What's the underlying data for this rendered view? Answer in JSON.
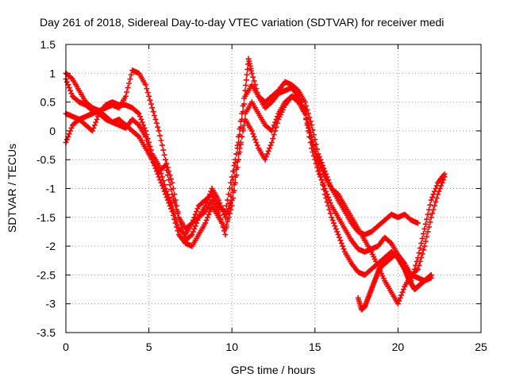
{
  "chart_data": {
    "type": "scatter",
    "title": "Day 261 of 2018, Sidereal Day-to-day VTEC variation (SDTVAR) for receiver medi",
    "xlabel": "GPS time / hours",
    "ylabel": "SDTVAR / TECUs",
    "xlim": [
      0,
      25
    ],
    "ylim": [
      -3.5,
      1.5
    ],
    "x_ticks": [
      0,
      5,
      10,
      15,
      20,
      25
    ],
    "x_tick_labels": [
      "0",
      "5",
      "10",
      "15",
      "20",
      "25"
    ],
    "y_ticks": [
      -3.5,
      -3,
      -2.5,
      -2,
      -1.5,
      -1,
      -0.5,
      0,
      0.5,
      1,
      1.5
    ],
    "y_tick_labels": [
      "-3.5",
      "-3",
      "-2.5",
      "-2",
      "-1.5",
      "-1",
      "-0.5",
      "0",
      "0.5",
      "1",
      "1.5"
    ],
    "grid": true,
    "marker": "+",
    "color": "#ff0000",
    "series": [
      {
        "name": "track-1",
        "x": [
          0.0,
          0.4,
          0.8,
          1.2,
          1.6,
          2.0,
          2.4,
          2.8,
          3.2,
          3.6,
          4.0,
          4.4,
          4.8,
          5.2,
          5.6,
          6.0,
          6.4,
          6.8,
          7.2,
          7.6,
          8.0,
          8.4,
          8.8,
          9.2,
          9.6,
          10.0,
          10.4,
          10.8,
          11.2,
          11.6,
          12.0,
          12.4,
          12.8,
          13.2,
          13.6,
          14.0,
          14.4,
          14.8,
          15.2,
          15.6,
          16.0,
          16.4,
          16.8,
          17.2,
          17.6,
          18.0,
          18.4,
          18.8,
          19.2,
          19.6,
          20.0,
          20.4,
          20.8,
          21.2
        ],
        "y": [
          1.0,
          0.9,
          0.7,
          0.5,
          0.4,
          0.35,
          0.4,
          0.45,
          0.4,
          0.6,
          1.05,
          1.0,
          0.8,
          0.4,
          0.0,
          -0.5,
          -0.9,
          -1.5,
          -1.7,
          -1.6,
          -1.3,
          -1.2,
          -1.1,
          -1.3,
          -1.4,
          -0.8,
          -0.2,
          0.6,
          0.8,
          0.6,
          0.5,
          0.6,
          0.7,
          0.85,
          0.8,
          0.7,
          0.5,
          0.1,
          -0.4,
          -0.7,
          -1.0,
          -1.2,
          -1.4,
          -1.6,
          -1.75,
          -1.8,
          -1.75,
          -1.65,
          -1.55,
          -1.45,
          -1.5,
          -1.45,
          -1.55,
          -1.6
        ]
      },
      {
        "name": "track-2",
        "x": [
          0.0,
          0.4,
          0.8,
          1.2,
          1.6,
          2.0,
          2.4,
          2.8,
          3.2,
          3.6,
          4.0,
          4.4,
          4.8,
          5.2,
          5.6,
          6.0,
          6.4,
          6.8,
          7.2,
          7.6,
          8.0,
          8.4,
          8.8,
          9.2,
          9.6,
          10.0,
          10.4,
          10.8,
          11.2,
          11.6,
          12.0,
          12.4,
          12.8,
          13.2,
          13.6,
          14.0,
          14.4,
          14.8,
          15.2,
          15.6,
          16.0,
          16.4,
          16.8,
          17.2,
          17.6,
          18.0,
          18.4,
          18.8,
          19.2,
          19.6,
          20.0,
          20.4,
          20.8,
          21.2,
          21.6,
          22.0
        ],
        "y": [
          0.3,
          0.25,
          0.2,
          0.25,
          0.3,
          0.35,
          0.25,
          0.15,
          0.1,
          0.05,
          0.2,
          0.1,
          -0.1,
          -0.5,
          -0.8,
          -1.1,
          -1.4,
          -1.8,
          -1.95,
          -2.0,
          -1.8,
          -1.6,
          -1.3,
          -1.5,
          -1.7,
          -1.3,
          -0.5,
          0.3,
          0.5,
          0.3,
          0.1,
          0.0,
          0.3,
          0.5,
          0.6,
          0.5,
          0.3,
          -0.3,
          -0.7,
          -1.0,
          -1.3,
          -1.5,
          -1.7,
          -1.9,
          -2.05,
          -2.1,
          -2.05,
          -2.0,
          -1.85,
          -1.95,
          -2.15,
          -2.3,
          -2.5,
          -2.55,
          -2.6,
          -2.55
        ]
      },
      {
        "name": "track-3",
        "x": [
          0.0,
          0.4,
          0.8,
          1.2,
          1.6,
          2.0,
          2.4,
          2.8,
          3.2,
          3.6,
          4.0,
          4.4,
          4.8,
          5.2,
          5.6,
          6.0,
          6.4,
          6.8,
          7.2,
          7.6,
          8.0,
          8.4,
          8.8,
          9.2,
          9.6,
          10.0,
          10.4,
          10.8,
          11.2,
          11.6,
          12.0,
          12.4,
          12.8,
          13.2,
          13.6,
          14.0,
          14.4,
          14.8,
          15.2,
          15.6,
          16.0,
          16.4,
          16.8,
          17.2,
          17.6,
          18.0,
          18.4,
          18.8,
          19.2,
          19.6,
          20.0,
          20.4,
          20.8,
          21.2,
          21.6,
          22.0,
          22.4,
          22.8
        ],
        "y": [
          -0.2,
          0.1,
          0.2,
          0.1,
          0.0,
          0.3,
          0.45,
          0.5,
          0.45,
          0.45,
          0.4,
          0.3,
          0.0,
          -0.4,
          -0.6,
          -1.0,
          -1.3,
          -1.7,
          -1.8,
          -1.6,
          -1.5,
          -1.3,
          -1.0,
          -1.2,
          -1.5,
          -1.2,
          -0.4,
          0.2,
          0.0,
          -0.3,
          -0.5,
          -0.2,
          0.2,
          0.45,
          0.6,
          0.55,
          0.35,
          -0.1,
          -0.6,
          -1.1,
          -1.5,
          -1.8,
          -2.1,
          -2.3,
          -2.45,
          -2.5,
          -2.4,
          -2.3,
          -2.2,
          -2.1,
          -2.2,
          -2.4,
          -2.6,
          -2.2,
          -1.7,
          -1.2,
          -0.9,
          -0.75
        ]
      },
      {
        "name": "track-4",
        "x": [
          0.0,
          0.4,
          0.8,
          1.2,
          1.6,
          2.0,
          2.4,
          2.8,
          3.2,
          3.6,
          4.0,
          4.4,
          4.8,
          5.2,
          5.6,
          6.0,
          6.4,
          6.8,
          7.2,
          7.6,
          8.0,
          8.4,
          8.8,
          9.2,
          9.6,
          10.0,
          10.4,
          10.8,
          11.0,
          11.2,
          11.6,
          12.0,
          12.4,
          12.8,
          13.2,
          13.6,
          14.0,
          14.4,
          14.8,
          15.2,
          15.6,
          16.0,
          16.4,
          16.8,
          17.2,
          17.6,
          18.0,
          18.4,
          18.8,
          19.2,
          19.6,
          20.0,
          20.4,
          20.8,
          21.2,
          21.6,
          22.0,
          22.4,
          22.8
        ],
        "y": [
          0.9,
          0.6,
          0.5,
          0.45,
          0.35,
          0.3,
          0.2,
          0.15,
          0.2,
          0.1,
          0.0,
          -0.1,
          -0.3,
          -0.5,
          -0.7,
          -0.6,
          -1.1,
          -1.5,
          -1.9,
          -1.8,
          -1.5,
          -1.4,
          -1.2,
          -1.4,
          -1.8,
          -1.0,
          -0.1,
          0.7,
          1.25,
          1.0,
          0.6,
          0.4,
          0.5,
          0.65,
          0.7,
          0.75,
          0.6,
          0.3,
          -0.2,
          -0.5,
          -0.8,
          -1.0,
          -1.1,
          -1.3,
          -1.5,
          -1.7,
          -1.9,
          -2.1,
          -2.35,
          -2.6,
          -2.8,
          -3.0,
          -2.7,
          -2.5,
          -2.4,
          -2.0,
          -1.5,
          -1.1,
          -0.8
        ]
      },
      {
        "name": "track-5",
        "x": [
          17.6,
          17.8,
          18.0,
          18.2,
          18.4,
          18.6,
          18.8,
          19.0,
          19.2,
          19.4,
          19.6,
          19.8,
          20.0,
          20.2,
          20.4,
          20.6,
          20.8,
          21.0,
          21.2,
          21.4,
          21.6,
          21.8,
          22.0
        ],
        "y": [
          -2.9,
          -3.1,
          -3.05,
          -2.9,
          -2.75,
          -2.6,
          -2.45,
          -2.35,
          -2.3,
          -2.25,
          -2.2,
          -2.15,
          -2.2,
          -2.3,
          -2.4,
          -2.55,
          -2.65,
          -2.75,
          -2.7,
          -2.65,
          -2.6,
          -2.55,
          -2.5
        ]
      }
    ]
  }
}
